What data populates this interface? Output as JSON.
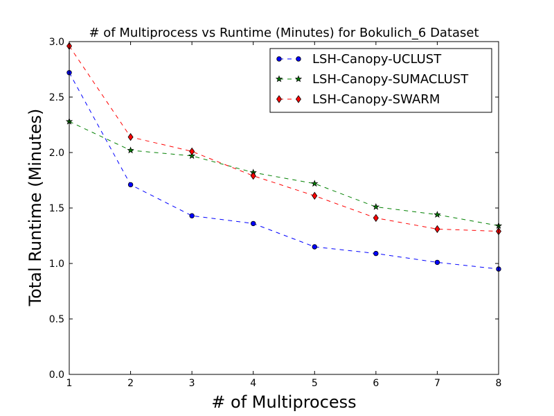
{
  "chart_data": {
    "type": "line",
    "title": "# of Multiprocess vs Runtime (Minutes) for Bokulich_6 Dataset",
    "xlabel": "# of Multiprocess",
    "ylabel": "Total Runtime (Minutes)",
    "x": [
      1,
      2,
      3,
      4,
      5,
      6,
      7,
      8
    ],
    "xlim": [
      1,
      8
    ],
    "ylim": [
      0.0,
      3.0
    ],
    "xticks": [
      "1",
      "2",
      "3",
      "4",
      "5",
      "6",
      "7",
      "8"
    ],
    "yticks": [
      "0.0",
      "0.5",
      "1.0",
      "1.5",
      "2.0",
      "2.5",
      "3.0"
    ],
    "grid": false,
    "legend_position": "top-right",
    "series": [
      {
        "name": "LSH-Canopy-UCLUST",
        "values": [
          2.72,
          1.71,
          1.43,
          1.36,
          1.15,
          1.09,
          1.01,
          0.95
        ],
        "color": "#0000ff",
        "marker": "circle",
        "line_style": "dashed"
      },
      {
        "name": "LSH-Canopy-SUMACLUST",
        "values": [
          2.28,
          2.02,
          1.97,
          1.82,
          1.72,
          1.51,
          1.44,
          1.34
        ],
        "color": "#008000",
        "marker": "star",
        "line_style": "dashed"
      },
      {
        "name": "LSH-Canopy-SWARM",
        "values": [
          2.96,
          2.14,
          2.01,
          1.79,
          1.61,
          1.41,
          1.31,
          1.29
        ],
        "color": "#ff0000",
        "marker": "diamond",
        "line_style": "dashed"
      }
    ]
  }
}
